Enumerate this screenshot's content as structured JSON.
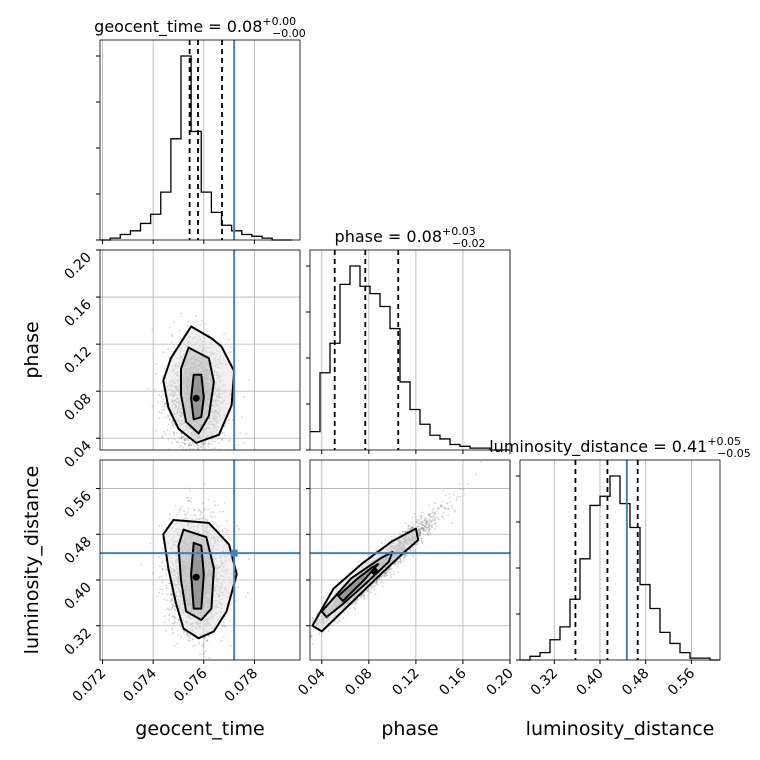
{
  "chart_data": {
    "type": "corner",
    "parameters": [
      "geocent_time",
      "phase",
      "luminosity_distance"
    ],
    "axis_labels": {
      "geocent_time": "geocent_time",
      "phase": "phase",
      "luminosity_distance": "luminosity_distance"
    },
    "titles": {
      "geocent_time": {
        "name": "geocent_time",
        "median": "0.08",
        "plus": "+0.00",
        "minus": "−0.00"
      },
      "phase": {
        "name": "phase",
        "median": "0.08",
        "plus": "+0.03",
        "minus": "−0.02"
      },
      "luminosity_distance": {
        "name": "luminosity_distance",
        "median": "0.41",
        "plus": "+0.05",
        "minus": "−0.05"
      }
    },
    "ranges": {
      "geocent_time": [
        0.0719,
        0.0798
      ],
      "phase": [
        0.03,
        0.2
      ],
      "luminosity_distance": [
        0.26,
        0.61
      ]
    },
    "ticks": {
      "geocent_time": {
        "values": [
          0.072,
          0.074,
          0.076,
          0.078
        ],
        "labels": [
          "0.072",
          "0.074",
          "0.076",
          "0.078"
        ]
      },
      "phase": {
        "values": [
          0.04,
          0.08,
          0.12,
          0.16,
          0.2
        ],
        "labels": [
          "0.04",
          "0.08",
          "0.12",
          "0.16",
          "0.20"
        ]
      },
      "luminosity_distance": {
        "values": [
          0.32,
          0.4,
          0.48,
          0.56
        ],
        "labels": [
          "0.32",
          "0.40",
          "0.48",
          "0.56"
        ]
      }
    },
    "injected": {
      "geocent_time": 0.0772,
      "phase": null,
      "luminosity_distance": 0.447
    },
    "quantiles": {
      "geocent_time": [
        0.07544,
        0.07577,
        0.07672
      ],
      "phase": [
        0.051,
        0.077,
        0.105
      ],
      "luminosity_distance": [
        0.357,
        0.413,
        0.466
      ]
    },
    "histograms": {
      "geocent_time": {
        "edges": [
          0.0719,
          0.0723,
          0.0727,
          0.0731,
          0.0735,
          0.0739,
          0.0743,
          0.0747,
          0.0751,
          0.0755,
          0.0759,
          0.0763,
          0.0767,
          0.0771,
          0.0775,
          0.0779,
          0.0783,
          0.0787,
          0.0791,
          0.0795
        ],
        "counts": [
          0,
          1,
          3,
          5,
          9,
          14,
          26,
          55,
          100,
          59,
          26,
          15,
          8,
          5,
          3,
          2,
          1,
          0,
          0
        ]
      },
      "phase": {
        "edges": [
          0.03,
          0.0385,
          0.047,
          0.0555,
          0.064,
          0.0725,
          0.081,
          0.0895,
          0.098,
          0.1065,
          0.115,
          0.1235,
          0.132,
          0.1405,
          0.149,
          0.1575,
          0.166,
          0.1745,
          0.183,
          0.1915,
          0.2
        ],
        "counts": [
          10,
          42,
          58,
          90,
          100,
          89,
          85,
          78,
          66,
          37,
          22,
          14,
          8,
          6,
          3,
          2,
          1,
          1,
          0,
          0
        ]
      },
      "luminosity_distance": {
        "edges": [
          0.26,
          0.2775,
          0.295,
          0.3125,
          0.33,
          0.3475,
          0.365,
          0.3825,
          0.4,
          0.4175,
          0.435,
          0.4525,
          0.47,
          0.4875,
          0.505,
          0.5225,
          0.54,
          0.5575,
          0.575,
          0.5925,
          0.61
        ],
        "counts": [
          0,
          2,
          4,
          11,
          18,
          33,
          55,
          84,
          89,
          100,
          85,
          72,
          41,
          28,
          15,
          9,
          4,
          1,
          1,
          0
        ]
      }
    },
    "pairs": [
      {
        "x": "geocent_time",
        "y": "phase",
        "center": [
          0.0757,
          0.074
        ],
        "spread": [
          0.00055,
          0.022
        ],
        "correlation": 0.0,
        "n": 2600,
        "contours": [
          [
            [
              0.0756,
              0.094
            ],
            [
              0.0759,
              0.094
            ],
            [
              0.076,
              0.075
            ],
            [
              0.0759,
              0.058
            ],
            [
              0.0756,
              0.056
            ],
            [
              0.0755,
              0.074
            ]
          ],
          [
            [
              0.0754,
              0.117
            ],
            [
              0.0762,
              0.108
            ],
            [
              0.0764,
              0.088
            ],
            [
              0.0762,
              0.059
            ],
            [
              0.0758,
              0.044
            ],
            [
              0.0753,
              0.054
            ],
            [
              0.0751,
              0.077
            ],
            [
              0.0751,
              0.099
            ]
          ],
          [
            [
              0.0755,
              0.135
            ],
            [
              0.0763,
              0.125
            ],
            [
              0.0767,
              0.118
            ],
            [
              0.0772,
              0.097
            ],
            [
              0.0771,
              0.068
            ],
            [
              0.0766,
              0.043
            ],
            [
              0.0757,
              0.036
            ],
            [
              0.075,
              0.048
            ],
            [
              0.0746,
              0.066
            ],
            [
              0.0744,
              0.089
            ],
            [
              0.0747,
              0.108
            ]
          ]
        ]
      },
      {
        "x": "geocent_time",
        "y": "luminosity_distance",
        "center": [
          0.0757,
          0.405
        ],
        "spread": [
          0.00055,
          0.05
        ],
        "correlation": 0.0,
        "n": 2600,
        "contours": [
          [
            [
              0.0756,
              0.465
            ],
            [
              0.0759,
              0.46
            ],
            [
              0.076,
              0.41
            ],
            [
              0.0759,
              0.35
            ],
            [
              0.0756,
              0.35
            ],
            [
              0.0755,
              0.41
            ]
          ],
          [
            [
              0.0752,
              0.488
            ],
            [
              0.0761,
              0.475
            ],
            [
              0.0764,
              0.42
            ],
            [
              0.0763,
              0.35
            ],
            [
              0.0759,
              0.33
            ],
            [
              0.0753,
              0.345
            ],
            [
              0.0751,
              0.4
            ],
            [
              0.075,
              0.46
            ]
          ],
          [
            [
              0.0748,
              0.505
            ],
            [
              0.0762,
              0.5
            ],
            [
              0.077,
              0.462
            ],
            [
              0.0773,
              0.41
            ],
            [
              0.0769,
              0.345
            ],
            [
              0.0764,
              0.31
            ],
            [
              0.0758,
              0.298
            ],
            [
              0.0752,
              0.315
            ],
            [
              0.0749,
              0.36
            ],
            [
              0.0746,
              0.42
            ],
            [
              0.0744,
              0.48
            ]
          ]
        ]
      },
      {
        "x": "phase",
        "y": "luminosity_distance",
        "center": [
          0.085,
          0.415
        ],
        "spread": [
          0.026,
          0.05
        ],
        "correlation": 0.97,
        "n": 2600,
        "contours": [
          [
            [
              0.054,
              0.372
            ],
            [
              0.07,
              0.402
            ],
            [
              0.082,
              0.421
            ],
            [
              0.088,
              0.428
            ],
            [
              0.076,
              0.4
            ],
            [
              0.058,
              0.363
            ]
          ],
          [
            [
              0.04,
              0.345
            ],
            [
              0.065,
              0.403
            ],
            [
              0.09,
              0.438
            ],
            [
              0.1,
              0.449
            ],
            [
              0.097,
              0.432
            ],
            [
              0.078,
              0.395
            ],
            [
              0.058,
              0.358
            ],
            [
              0.044,
              0.335
            ]
          ],
          [
            [
              0.032,
              0.32
            ],
            [
              0.05,
              0.385
            ],
            [
              0.075,
              0.43
            ],
            [
              0.1,
              0.468
            ],
            [
              0.12,
              0.49
            ],
            [
              0.122,
              0.47
            ],
            [
              0.108,
              0.445
            ],
            [
              0.085,
              0.4
            ],
            [
              0.06,
              0.35
            ],
            [
              0.04,
              0.31
            ]
          ]
        ]
      }
    ]
  }
}
